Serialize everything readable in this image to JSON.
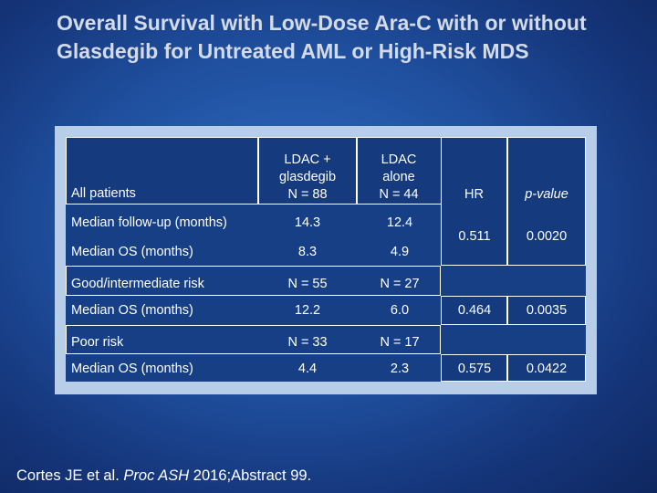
{
  "title": "Overall Survival with Low-Dose Ara-C with or without Glasdegib for Untreated AML or High-Risk MDS",
  "table": {
    "header": {
      "col0": "All patients",
      "col1_line1": "LDAC +",
      "col1_line2": "glasdegib",
      "col1_line3": "N = 88",
      "col2_line1": "LDAC",
      "col2_line2": "alone",
      "col2_line3": "N = 44",
      "col3": "HR",
      "col4": "p-value"
    },
    "rows": [
      {
        "label": "Median follow-up (months)",
        "ldac_glas": "14.3",
        "ldac_alone": "12.4"
      },
      {
        "label": "Median OS (months)",
        "ldac_glas": "8.3",
        "ldac_alone": "4.9"
      },
      {
        "label": "Good/intermediate risk",
        "ldac_glas": "N = 55",
        "ldac_alone": "N = 27"
      },
      {
        "label": "Median OS (months)",
        "ldac_glas": "12.2",
        "ldac_alone": "6.0",
        "hr": "0.464",
        "p": "0.0035"
      },
      {
        "label": "Poor risk",
        "ldac_glas": "N = 33",
        "ldac_alone": "N = 17"
      },
      {
        "label": "Median OS (months)",
        "ldac_glas": "4.4",
        "ldac_alone": "2.3",
        "hr": "0.575",
        "p": "0.0422"
      }
    ],
    "overall_hr": "0.511",
    "overall_p": "0.0020"
  },
  "citation": {
    "authors": "Cortes JE et al. ",
    "journal": "Proc ASH",
    "rest": " 2016;Abstract 99."
  }
}
